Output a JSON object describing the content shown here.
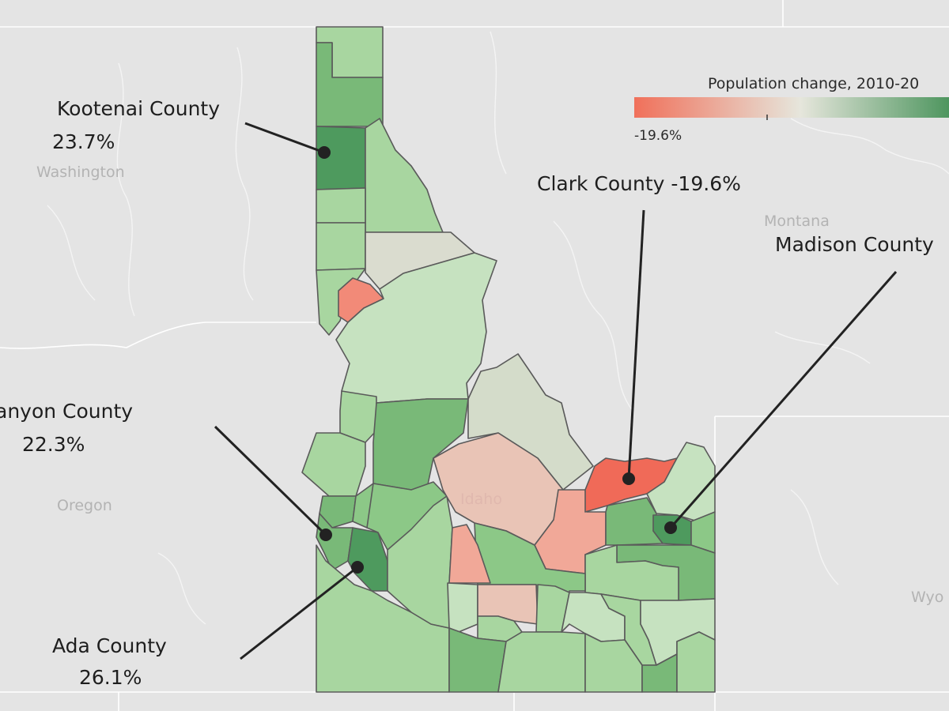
{
  "map": {
    "legend": {
      "title": "Population change, 2010-20",
      "min_label": "-19.6%",
      "colors": {
        "negative": "#f0705a",
        "neutral": "#e6e6dc",
        "positive": "#3c8c50"
      }
    },
    "place_labels": {
      "washington": "Washington",
      "montana": "Montana",
      "oregon": "Oregon",
      "idaho": "Idaho",
      "wyoming": "Wyo"
    },
    "annotations": {
      "kootenai": {
        "name": "Kootenai County",
        "value": "23.7%"
      },
      "canyon": {
        "name": "anyon County",
        "value": "22.3%"
      },
      "ada": {
        "name": "Ada County",
        "value": "26.1%"
      },
      "clark": {
        "name": "Clark County -19.6%"
      },
      "madison": {
        "name": "Madison County"
      }
    },
    "county_colors": {
      "dark_green": "#4e9a5e",
      "mid_green": "#79b978",
      "green": "#8cc887",
      "light_green": "#a8d6a0",
      "pale_green": "#c6e2c0",
      "grey_green": "#d4dcca",
      "grey": "#dadccf",
      "pale_red": "#e9c4b6",
      "light_red": "#f1a898",
      "red": "#f28a78",
      "strong_red": "#f06a58"
    }
  }
}
